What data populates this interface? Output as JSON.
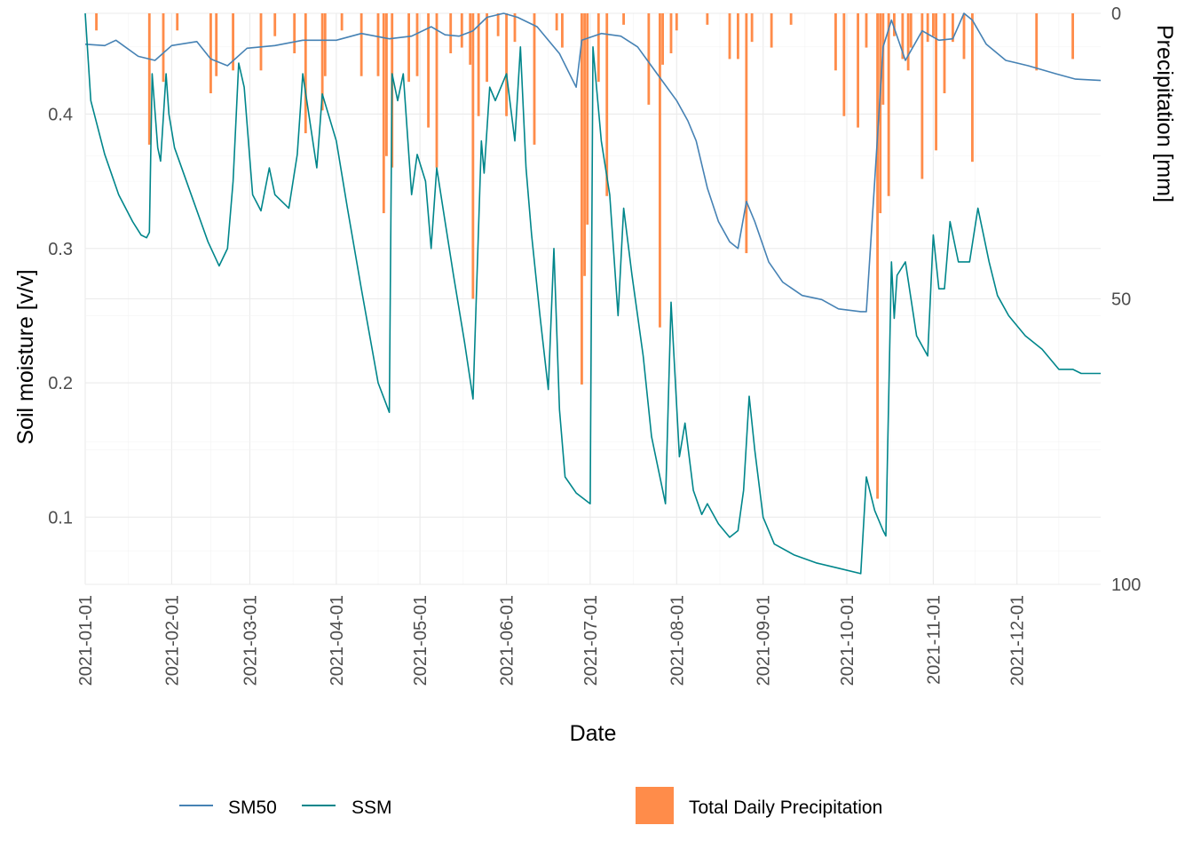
{
  "chart_data": {
    "type": "line",
    "title": "",
    "xlabel": "Date",
    "ylabel": "Soil moisture [v/v]",
    "y2label": "Precipitation [mm]",
    "xlim": [
      "2021-01-01",
      "2021-12-31"
    ],
    "ylim": [
      0.05,
      0.475
    ],
    "y2lim": [
      0,
      100
    ],
    "y2_reversed": true,
    "grid": true,
    "legend_position": "bottom",
    "x_ticks": [
      "2021-01-01",
      "2021-02-01",
      "2021-03-01",
      "2021-04-01",
      "2021-05-01",
      "2021-06-01",
      "2021-07-01",
      "2021-08-01",
      "2021-09-01",
      "2021-10-01",
      "2021-11-01",
      "2021-12-01"
    ],
    "y_ticks": [
      0.1,
      0.2,
      0.3,
      0.4
    ],
    "y2_ticks": [
      0,
      50,
      100
    ],
    "series": [
      {
        "name": "SM50",
        "color": "#4682b4",
        "points": [
          [
            "2021-01-01",
            0.452
          ],
          [
            "2021-01-08",
            0.451
          ],
          [
            "2021-01-12",
            0.455
          ],
          [
            "2021-01-20",
            0.443
          ],
          [
            "2021-01-26",
            0.44
          ],
          [
            "2021-02-01",
            0.451
          ],
          [
            "2021-02-10",
            0.454
          ],
          [
            "2021-02-15",
            0.441
          ],
          [
            "2021-02-21",
            0.436
          ],
          [
            "2021-02-28",
            0.449
          ],
          [
            "2021-03-10",
            0.451
          ],
          [
            "2021-03-20",
            0.455
          ],
          [
            "2021-04-01",
            0.455
          ],
          [
            "2021-04-10",
            0.46
          ],
          [
            "2021-04-20",
            0.456
          ],
          [
            "2021-04-28",
            0.458
          ],
          [
            "2021-05-05",
            0.465
          ],
          [
            "2021-05-10",
            0.459
          ],
          [
            "2021-05-15",
            0.458
          ],
          [
            "2021-05-20",
            0.462
          ],
          [
            "2021-05-25",
            0.472
          ],
          [
            "2021-05-31",
            0.477
          ],
          [
            "2021-06-05",
            0.472
          ],
          [
            "2021-06-12",
            0.465
          ],
          [
            "2021-06-20",
            0.445
          ],
          [
            "2021-06-26",
            0.42
          ],
          [
            "2021-06-28",
            0.455
          ],
          [
            "2021-07-05",
            0.46
          ],
          [
            "2021-07-12",
            0.458
          ],
          [
            "2021-07-18",
            0.45
          ],
          [
            "2021-07-25",
            0.43
          ],
          [
            "2021-08-01",
            0.41
          ],
          [
            "2021-08-05",
            0.395
          ],
          [
            "2021-08-08",
            0.38
          ],
          [
            "2021-08-12",
            0.345
          ],
          [
            "2021-08-16",
            0.32
          ],
          [
            "2021-08-20",
            0.305
          ],
          [
            "2021-08-23",
            0.3
          ],
          [
            "2021-08-26",
            0.335
          ],
          [
            "2021-08-29",
            0.32
          ],
          [
            "2021-09-03",
            0.29
          ],
          [
            "2021-09-08",
            0.275
          ],
          [
            "2021-09-15",
            0.265
          ],
          [
            "2021-09-22",
            0.262
          ],
          [
            "2021-09-28",
            0.255
          ],
          [
            "2021-10-06",
            0.253
          ],
          [
            "2021-10-08",
            0.253
          ],
          [
            "2021-10-11",
            0.35
          ],
          [
            "2021-10-14",
            0.45
          ],
          [
            "2021-10-17",
            0.47
          ],
          [
            "2021-10-22",
            0.44
          ],
          [
            "2021-10-28",
            0.462
          ],
          [
            "2021-11-03",
            0.455
          ],
          [
            "2021-11-08",
            0.456
          ],
          [
            "2021-11-12",
            0.48
          ],
          [
            "2021-11-15",
            0.47
          ],
          [
            "2021-11-20",
            0.452
          ],
          [
            "2021-11-27",
            0.44
          ],
          [
            "2021-12-05",
            0.436
          ],
          [
            "2021-12-15",
            0.43
          ],
          [
            "2021-12-22",
            0.426
          ],
          [
            "2021-12-31",
            0.425
          ]
        ]
      },
      {
        "name": "SSM",
        "color": "#00868b",
        "points": [
          [
            "2021-01-01",
            0.477
          ],
          [
            "2021-01-03",
            0.41
          ],
          [
            "2021-01-08",
            0.37
          ],
          [
            "2021-01-13",
            0.34
          ],
          [
            "2021-01-18",
            0.32
          ],
          [
            "2021-01-21",
            0.31
          ],
          [
            "2021-01-23",
            0.308
          ],
          [
            "2021-01-24",
            0.312
          ],
          [
            "2021-01-25",
            0.43
          ],
          [
            "2021-01-27",
            0.375
          ],
          [
            "2021-01-28",
            0.365
          ],
          [
            "2021-01-30",
            0.43
          ],
          [
            "2021-01-31",
            0.4
          ],
          [
            "2021-02-02",
            0.375
          ],
          [
            "2021-02-08",
            0.34
          ],
          [
            "2021-02-14",
            0.305
          ],
          [
            "2021-02-18",
            0.287
          ],
          [
            "2021-02-21",
            0.3
          ],
          [
            "2021-02-23",
            0.35
          ],
          [
            "2021-02-25",
            0.438
          ],
          [
            "2021-02-27",
            0.42
          ],
          [
            "2021-03-02",
            0.34
          ],
          [
            "2021-03-05",
            0.328
          ],
          [
            "2021-03-08",
            0.36
          ],
          [
            "2021-03-10",
            0.34
          ],
          [
            "2021-03-15",
            0.33
          ],
          [
            "2021-03-18",
            0.37
          ],
          [
            "2021-03-20",
            0.43
          ],
          [
            "2021-03-25",
            0.36
          ],
          [
            "2021-03-27",
            0.415
          ],
          [
            "2021-04-01",
            0.38
          ],
          [
            "2021-04-05",
            0.33
          ],
          [
            "2021-04-10",
            0.27
          ],
          [
            "2021-04-16",
            0.2
          ],
          [
            "2021-04-20",
            0.178
          ],
          [
            "2021-04-21",
            0.43
          ],
          [
            "2021-04-23",
            0.41
          ],
          [
            "2021-04-25",
            0.43
          ],
          [
            "2021-04-28",
            0.34
          ],
          [
            "2021-04-30",
            0.37
          ],
          [
            "2021-05-03",
            0.35
          ],
          [
            "2021-05-05",
            0.3
          ],
          [
            "2021-05-07",
            0.36
          ],
          [
            "2021-05-10",
            0.32
          ],
          [
            "2021-05-13",
            0.28
          ],
          [
            "2021-05-17",
            0.23
          ],
          [
            "2021-05-20",
            0.188
          ],
          [
            "2021-05-23",
            0.38
          ],
          [
            "2021-05-24",
            0.356
          ],
          [
            "2021-05-26",
            0.42
          ],
          [
            "2021-05-28",
            0.41
          ],
          [
            "2021-06-01",
            0.43
          ],
          [
            "2021-06-04",
            0.38
          ],
          [
            "2021-06-06",
            0.45
          ],
          [
            "2021-06-08",
            0.36
          ],
          [
            "2021-06-10",
            0.31
          ],
          [
            "2021-06-13",
            0.25
          ],
          [
            "2021-06-16",
            0.195
          ],
          [
            "2021-06-18",
            0.3
          ],
          [
            "2021-06-20",
            0.18
          ],
          [
            "2021-06-22",
            0.13
          ],
          [
            "2021-06-26",
            0.118
          ],
          [
            "2021-07-01",
            0.11
          ],
          [
            "2021-07-02",
            0.45
          ],
          [
            "2021-07-05",
            0.38
          ],
          [
            "2021-07-08",
            0.34
          ],
          [
            "2021-07-11",
            0.25
          ],
          [
            "2021-07-13",
            0.33
          ],
          [
            "2021-07-16",
            0.28
          ],
          [
            "2021-07-20",
            0.22
          ],
          [
            "2021-07-23",
            0.16
          ],
          [
            "2021-07-28",
            0.11
          ],
          [
            "2021-07-30",
            0.26
          ],
          [
            "2021-08-02",
            0.145
          ],
          [
            "2021-08-04",
            0.17
          ],
          [
            "2021-08-07",
            0.12
          ],
          [
            "2021-08-10",
            0.102
          ],
          [
            "2021-08-12",
            0.11
          ],
          [
            "2021-08-16",
            0.095
          ],
          [
            "2021-08-20",
            0.085
          ],
          [
            "2021-08-23",
            0.09
          ],
          [
            "2021-08-25",
            0.12
          ],
          [
            "2021-08-27",
            0.19
          ],
          [
            "2021-08-29",
            0.15
          ],
          [
            "2021-09-01",
            0.1
          ],
          [
            "2021-09-05",
            0.08
          ],
          [
            "2021-09-12",
            0.072
          ],
          [
            "2021-09-20",
            0.066
          ],
          [
            "2021-09-28",
            0.062
          ],
          [
            "2021-10-06",
            0.058
          ],
          [
            "2021-10-08",
            0.13
          ],
          [
            "2021-10-11",
            0.105
          ],
          [
            "2021-10-14",
            0.09
          ],
          [
            "2021-10-15",
            0.086
          ],
          [
            "2021-10-17",
            0.29
          ],
          [
            "2021-10-18",
            0.248
          ],
          [
            "2021-10-19",
            0.28
          ],
          [
            "2021-10-22",
            0.29
          ],
          [
            "2021-10-26",
            0.235
          ],
          [
            "2021-10-30",
            0.22
          ],
          [
            "2021-11-01",
            0.31
          ],
          [
            "2021-11-03",
            0.27
          ],
          [
            "2021-11-05",
            0.27
          ],
          [
            "2021-11-07",
            0.32
          ],
          [
            "2021-11-10",
            0.29
          ],
          [
            "2021-11-14",
            0.29
          ],
          [
            "2021-11-17",
            0.33
          ],
          [
            "2021-11-19",
            0.31
          ],
          [
            "2021-11-21",
            0.29
          ],
          [
            "2021-11-24",
            0.265
          ],
          [
            "2021-11-28",
            0.25
          ],
          [
            "2021-12-04",
            0.235
          ],
          [
            "2021-12-10",
            0.225
          ],
          [
            "2021-12-16",
            0.21
          ],
          [
            "2021-12-21",
            0.21
          ],
          [
            "2021-12-24",
            0.207
          ],
          [
            "2021-12-27",
            0.207
          ],
          [
            "2021-12-31",
            0.207
          ]
        ]
      },
      {
        "name": "Total Daily Precipitation",
        "type": "bar",
        "color": "#ff8c4a",
        "axis": "right",
        "points": [
          [
            "2021-01-05",
            3.0
          ],
          [
            "2021-01-24",
            23.0
          ],
          [
            "2021-01-29",
            12.0
          ],
          [
            "2021-02-03",
            3.0
          ],
          [
            "2021-02-15",
            14.0
          ],
          [
            "2021-02-17",
            11.0
          ],
          [
            "2021-02-23",
            10.0
          ],
          [
            "2021-03-05",
            10.0
          ],
          [
            "2021-03-10",
            4.0
          ],
          [
            "2021-03-17",
            7.0
          ],
          [
            "2021-03-21",
            21.0
          ],
          [
            "2021-03-27",
            17.0
          ],
          [
            "2021-03-28",
            11.0
          ],
          [
            "2021-04-03",
            3.0
          ],
          [
            "2021-04-10",
            11.0
          ],
          [
            "2021-04-16",
            11.0
          ],
          [
            "2021-04-18",
            35.0
          ],
          [
            "2021-04-19",
            25.0
          ],
          [
            "2021-04-21",
            27.0
          ],
          [
            "2021-04-27",
            12.0
          ],
          [
            "2021-04-30",
            11.0
          ],
          [
            "2021-05-04",
            20.0
          ],
          [
            "2021-05-07",
            27.0
          ],
          [
            "2021-05-12",
            7.0
          ],
          [
            "2021-05-16",
            6.0
          ],
          [
            "2021-05-19",
            9.0
          ],
          [
            "2021-05-20",
            50.0
          ],
          [
            "2021-05-22",
            18.0
          ],
          [
            "2021-05-25",
            12.0
          ],
          [
            "2021-05-29",
            4.0
          ],
          [
            "2021-06-01",
            18.0
          ],
          [
            "2021-06-04",
            5.0
          ],
          [
            "2021-06-11",
            23.0
          ],
          [
            "2021-06-19",
            3.0
          ],
          [
            "2021-06-21",
            6.0
          ],
          [
            "2021-06-28",
            65.0
          ],
          [
            "2021-06-29",
            46.0
          ],
          [
            "2021-06-30",
            37.0
          ],
          [
            "2021-07-04",
            12.0
          ],
          [
            "2021-07-07",
            32.0
          ],
          [
            "2021-07-13",
            2.0
          ],
          [
            "2021-07-22",
            16.0
          ],
          [
            "2021-07-26",
            55.0
          ],
          [
            "2021-07-27",
            9.0
          ],
          [
            "2021-07-30",
            7.0
          ],
          [
            "2021-08-01",
            3.0
          ],
          [
            "2021-08-12",
            2.0
          ],
          [
            "2021-08-20",
            8.0
          ],
          [
            "2021-08-23",
            8.0
          ],
          [
            "2021-08-26",
            42.0
          ],
          [
            "2021-08-28",
            5.0
          ],
          [
            "2021-09-04",
            6.0
          ],
          [
            "2021-09-11",
            2.0
          ],
          [
            "2021-09-27",
            10.0
          ],
          [
            "2021-09-30",
            18.0
          ],
          [
            "2021-10-05",
            20.0
          ],
          [
            "2021-10-08",
            6.0
          ],
          [
            "2021-10-12",
            85.0
          ],
          [
            "2021-10-13",
            35.0
          ],
          [
            "2021-10-14",
            16.0
          ],
          [
            "2021-10-16",
            32.0
          ],
          [
            "2021-10-18",
            4.0
          ],
          [
            "2021-10-21",
            8.0
          ],
          [
            "2021-10-23",
            10.0
          ],
          [
            "2021-10-24",
            6.0
          ],
          [
            "2021-10-28",
            29.0
          ],
          [
            "2021-10-30",
            5.0
          ],
          [
            "2021-11-01",
            4.0
          ],
          [
            "2021-11-02",
            24.0
          ],
          [
            "2021-11-05",
            14.0
          ],
          [
            "2021-11-08",
            5.0
          ],
          [
            "2021-11-12",
            8.0
          ],
          [
            "2021-11-15",
            26.0
          ],
          [
            "2021-12-08",
            10.0
          ],
          [
            "2021-12-21",
            8.0
          ]
        ]
      }
    ]
  }
}
